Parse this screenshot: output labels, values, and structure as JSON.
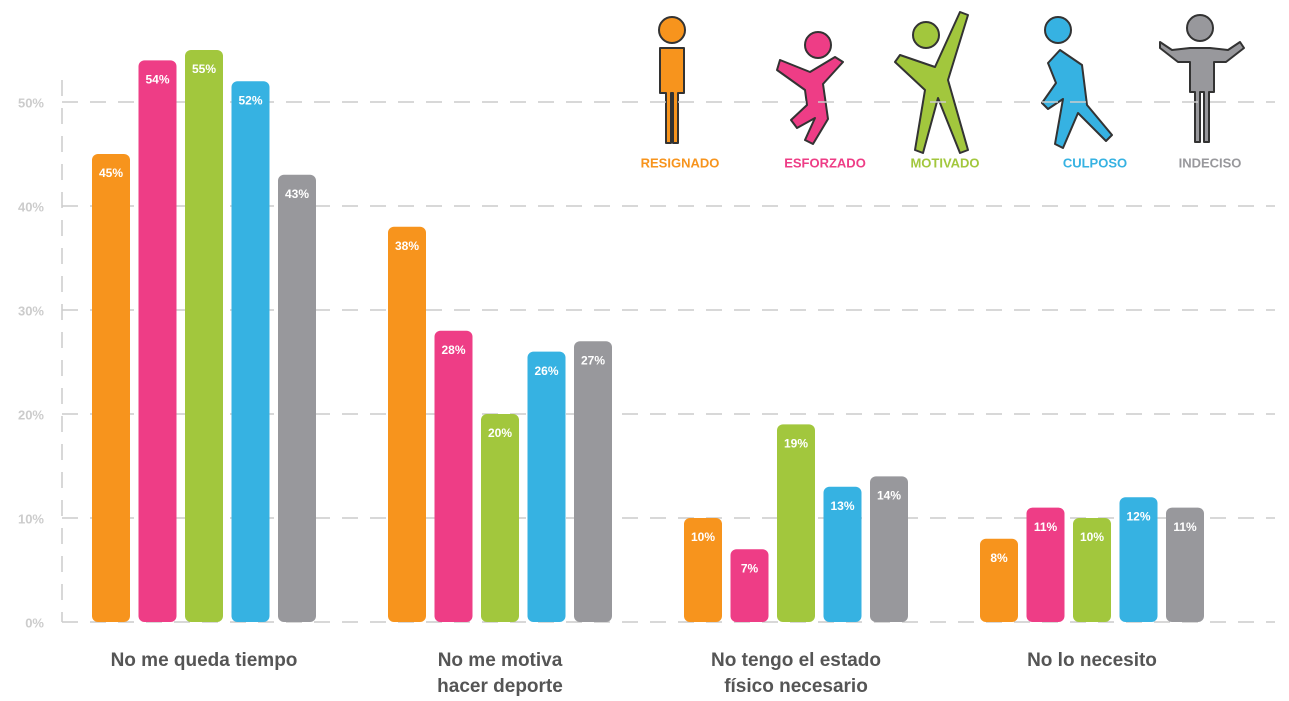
{
  "chart_data": {
    "type": "bar",
    "categories": [
      "No me queda tiempo",
      "No me motiva\nhacer deporte",
      "No tengo el estado\nfísico necesario",
      "No lo necesito"
    ],
    "series": [
      {
        "name": "RESIGNADO",
        "color": "#f7941d",
        "values": [
          45,
          38,
          10,
          8
        ],
        "value_labels": [
          "45%",
          "38%",
          "10%",
          "8%"
        ]
      },
      {
        "name": "ESFORZADO",
        "color": "#ee3d86",
        "values": [
          54,
          28,
          7,
          11
        ],
        "value_labels": [
          "54%",
          "28%",
          "7%",
          "11%"
        ]
      },
      {
        "name": "MOTIVADO",
        "color": "#a2c73d",
        "values": [
          55,
          20,
          19,
          10
        ],
        "value_labels": [
          "55%",
          "20%",
          "19%",
          "10%"
        ]
      },
      {
        "name": "CULPOSO",
        "color": "#36b2e2",
        "values": [
          52,
          26,
          13,
          12
        ],
        "value_labels": [
          "52%",
          "26%",
          "13%",
          "12%"
        ]
      },
      {
        "name": "INDECISO",
        "color": "#98989c",
        "values": [
          43,
          27,
          14,
          11
        ],
        "value_labels": [
          "43%",
          "27%",
          "14%",
          "11%"
        ]
      }
    ],
    "ylim": [
      0,
      55
    ],
    "yticks": [
      {
        "value": 0,
        "label": "0%"
      },
      {
        "value": 10,
        "label": "10%"
      },
      {
        "value": 20,
        "label": "20%"
      },
      {
        "value": 30,
        "label": "30%"
      },
      {
        "value": 40,
        "label": "40%"
      },
      {
        "value": 50,
        "label": "50%"
      }
    ],
    "grid": true
  }
}
